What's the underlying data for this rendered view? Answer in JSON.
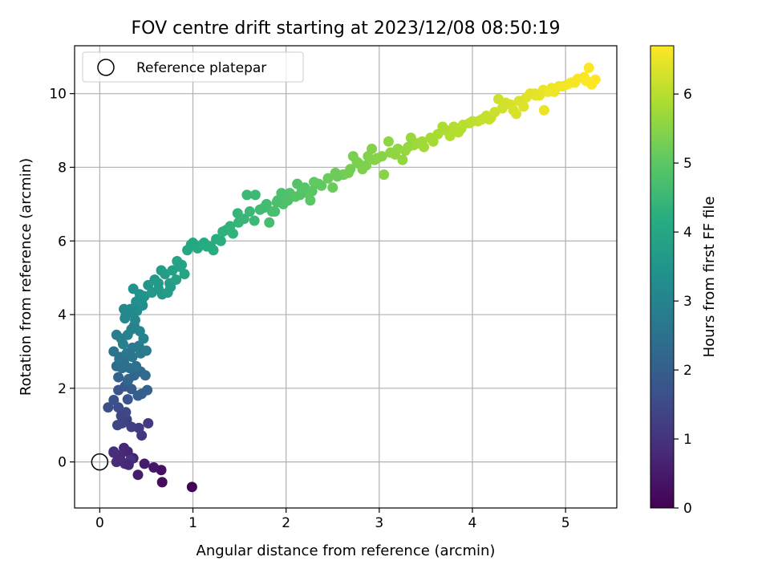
{
  "chart_data": {
    "type": "scatter",
    "title": "FOV centre drift starting at 2023/12/08 08:50:19",
    "xlabel": "Angular distance from reference (arcmin)",
    "ylabel": "Rotation from reference (arcmin)",
    "xlim": [
      -0.27,
      5.55
    ],
    "ylim": [
      -1.25,
      11.3
    ],
    "xticks": [
      0,
      1,
      2,
      3,
      4,
      5
    ],
    "yticks": [
      0,
      2,
      4,
      6,
      8,
      10
    ],
    "grid": true,
    "colormap": "viridis",
    "legend": {
      "position": "top-left",
      "entries": [
        "Reference platepar"
      ]
    },
    "reference_point": {
      "x": 0,
      "y": 0,
      "marker": "open-circle",
      "label": "Reference platepar"
    },
    "colorbar": {
      "label": "Hours from first FF file",
      "min": 0,
      "max": 6.7,
      "ticks": [
        0,
        1,
        2,
        3,
        4,
        5,
        6
      ]
    },
    "points": [
      [
        0.99,
        -0.68,
        0.05
      ],
      [
        0.67,
        -0.55,
        0.2
      ],
      [
        0.66,
        -0.22,
        0.3
      ],
      [
        0.58,
        -0.15,
        0.4
      ],
      [
        0.48,
        -0.05,
        0.5
      ],
      [
        0.41,
        -0.35,
        0.55
      ],
      [
        0.36,
        0.1,
        0.65
      ],
      [
        0.3,
        0.28,
        0.7
      ],
      [
        0.26,
        0.38,
        0.75
      ],
      [
        0.22,
        0.18,
        0.8
      ],
      [
        0.18,
        0.0,
        0.85
      ],
      [
        0.15,
        0.25,
        0.9
      ],
      [
        0.27,
        -0.05,
        0.95
      ],
      [
        0.33,
        0.06,
        1.0
      ],
      [
        0.45,
        0.72,
        1.1
      ],
      [
        0.42,
        0.92,
        1.2
      ],
      [
        0.34,
        0.95,
        1.25
      ],
      [
        0.29,
        1.15,
        1.3
      ],
      [
        0.24,
        1.05,
        1.35
      ],
      [
        0.19,
        1.0,
        1.4
      ],
      [
        0.28,
        1.35,
        1.5
      ],
      [
        0.2,
        1.48,
        1.55
      ],
      [
        0.09,
        1.48,
        1.6
      ],
      [
        0.15,
        1.68,
        1.7
      ],
      [
        0.3,
        1.7,
        1.75
      ],
      [
        0.2,
        1.95,
        1.8
      ],
      [
        0.27,
        2.05,
        1.85
      ],
      [
        0.34,
        1.98,
        1.9
      ],
      [
        0.41,
        1.8,
        1.95
      ],
      [
        0.45,
        1.85,
        2.0
      ],
      [
        0.51,
        1.95,
        2.05
      ],
      [
        0.2,
        2.3,
        2.1
      ],
      [
        0.3,
        2.2,
        2.15
      ],
      [
        0.37,
        2.35,
        2.2
      ],
      [
        0.44,
        2.45,
        2.25
      ],
      [
        0.49,
        2.35,
        2.3
      ],
      [
        0.18,
        2.6,
        2.35
      ],
      [
        0.26,
        2.7,
        2.4
      ],
      [
        0.32,
        2.55,
        2.45
      ],
      [
        0.39,
        2.6,
        2.5
      ],
      [
        0.15,
        3.0,
        2.55
      ],
      [
        0.22,
        2.85,
        2.6
      ],
      [
        0.29,
        2.95,
        2.65
      ],
      [
        0.35,
        3.1,
        2.7
      ],
      [
        0.42,
        3.15,
        2.75
      ],
      [
        0.5,
        3.02,
        2.8
      ],
      [
        0.18,
        3.45,
        2.85
      ],
      [
        0.25,
        3.2,
        2.9
      ],
      [
        0.3,
        3.45,
        2.95
      ],
      [
        0.37,
        3.7,
        3.0
      ],
      [
        0.43,
        3.55,
        3.05
      ],
      [
        0.38,
        3.85,
        3.1
      ],
      [
        0.27,
        3.9,
        3.12
      ],
      [
        0.26,
        4.15,
        3.15
      ],
      [
        0.32,
        4.05,
        3.2
      ],
      [
        0.4,
        4.1,
        3.25
      ],
      [
        0.46,
        4.25,
        3.3
      ],
      [
        0.39,
        4.35,
        3.35
      ],
      [
        0.43,
        4.55,
        3.4
      ],
      [
        0.36,
        4.7,
        3.45
      ],
      [
        0.48,
        4.5,
        3.5
      ],
      [
        0.52,
        4.8,
        3.55
      ],
      [
        0.59,
        4.95,
        3.6
      ],
      [
        0.63,
        4.7,
        3.62
      ],
      [
        0.67,
        4.55,
        3.65
      ],
      [
        0.7,
        5.1,
        3.7
      ],
      [
        0.75,
        4.85,
        3.75
      ],
      [
        0.78,
        5.2,
        3.8
      ],
      [
        0.82,
        4.95,
        3.85
      ],
      [
        0.88,
        5.35,
        3.9
      ],
      [
        0.91,
        5.1,
        3.95
      ],
      [
        0.98,
        5.9,
        4.0
      ],
      [
        1.05,
        5.8,
        4.05
      ],
      [
        1.12,
        5.95,
        4.1
      ],
      [
        1.19,
        5.85,
        4.15
      ],
      [
        1.25,
        6.05,
        4.2
      ],
      [
        1.3,
        6.0,
        4.25
      ],
      [
        1.36,
        6.3,
        4.3
      ],
      [
        1.43,
        6.2,
        4.35
      ],
      [
        1.49,
        6.5,
        4.4
      ],
      [
        1.55,
        6.6,
        4.45
      ],
      [
        1.61,
        6.8,
        4.5
      ],
      [
        1.66,
        6.55,
        4.55
      ],
      [
        1.72,
        6.85,
        4.6
      ],
      [
        1.79,
        7.0,
        4.65
      ],
      [
        1.85,
        6.8,
        4.7
      ],
      [
        1.91,
        7.1,
        4.75
      ],
      [
        1.97,
        7.0,
        4.8
      ],
      [
        2.04,
        7.3,
        4.85
      ],
      [
        2.1,
        7.2,
        4.9
      ],
      [
        2.17,
        7.4,
        4.95
      ],
      [
        2.23,
        7.3,
        5.0
      ],
      [
        2.3,
        7.6,
        5.05
      ],
      [
        2.38,
        7.5,
        5.1
      ],
      [
        2.45,
        7.7,
        5.15
      ],
      [
        2.53,
        7.85,
        5.2
      ],
      [
        2.61,
        7.8,
        5.25
      ],
      [
        2.69,
        7.95,
        5.3
      ],
      [
        2.78,
        8.1,
        5.35
      ],
      [
        2.86,
        8.05,
        5.4
      ],
      [
        2.95,
        8.2,
        5.45
      ],
      [
        3.03,
        8.3,
        5.5
      ],
      [
        3.12,
        8.4,
        5.55
      ],
      [
        3.2,
        8.5,
        5.6
      ],
      [
        3.28,
        8.45,
        5.65
      ],
      [
        3.37,
        8.6,
        5.7
      ],
      [
        3.46,
        8.7,
        5.75
      ],
      [
        3.55,
        8.8,
        5.8
      ],
      [
        3.63,
        8.9,
        5.85
      ],
      [
        3.72,
        9.0,
        5.9
      ],
      [
        3.8,
        9.1,
        5.95
      ],
      [
        3.88,
        9.05,
        6.0
      ],
      [
        3.97,
        9.2,
        6.05
      ],
      [
        4.06,
        9.25,
        6.1
      ],
      [
        4.15,
        9.4,
        6.15
      ],
      [
        4.24,
        9.5,
        6.2
      ],
      [
        4.32,
        9.6,
        6.25
      ],
      [
        4.41,
        9.7,
        6.3
      ],
      [
        4.5,
        9.8,
        6.35
      ],
      [
        4.58,
        9.9,
        6.4
      ],
      [
        4.67,
        10.0,
        6.45
      ],
      [
        4.76,
        10.1,
        6.5
      ],
      [
        4.85,
        10.15,
        6.55
      ],
      [
        4.93,
        10.2,
        6.58
      ],
      [
        5.02,
        10.25,
        6.6
      ],
      [
        5.1,
        10.3,
        6.62
      ],
      [
        5.2,
        10.45,
        6.65
      ],
      [
        5.25,
        10.7,
        6.68
      ],
      [
        5.28,
        10.25,
        6.7
      ],
      [
        5.32,
        10.38,
        6.7
      ],
      [
        0.31,
        -0.08,
        0.75
      ],
      [
        0.22,
        0.05,
        0.8
      ],
      [
        0.15,
        0.28,
        0.88
      ],
      [
        0.52,
        1.05,
        1.15
      ],
      [
        0.23,
        1.25,
        1.4
      ],
      [
        0.35,
        2.85,
        2.6
      ],
      [
        0.44,
        2.95,
        2.7
      ],
      [
        0.23,
        3.35,
        2.88
      ],
      [
        0.34,
        3.6,
        3.0
      ],
      [
        0.28,
        4.05,
        3.12
      ],
      [
        0.56,
        4.6,
        3.55
      ],
      [
        0.66,
        5.2,
        3.7
      ],
      [
        0.73,
        4.6,
        3.7
      ],
      [
        0.83,
        5.45,
        3.9
      ],
      [
        0.94,
        5.75,
        4.0
      ],
      [
        1.1,
        5.9,
        4.1
      ],
      [
        1.22,
        5.75,
        4.2
      ],
      [
        1.32,
        6.25,
        4.3
      ],
      [
        1.48,
        6.75,
        4.42
      ],
      [
        1.58,
        7.25,
        4.5
      ],
      [
        1.67,
        7.25,
        4.55
      ],
      [
        1.82,
        6.5,
        4.65
      ],
      [
        1.95,
        7.3,
        4.78
      ],
      [
        2.02,
        7.1,
        4.8
      ],
      [
        2.12,
        7.55,
        4.88
      ],
      [
        2.2,
        7.45,
        4.92
      ],
      [
        2.26,
        7.1,
        4.98
      ],
      [
        2.35,
        7.55,
        5.05
      ],
      [
        2.5,
        7.45,
        5.15
      ],
      [
        2.62,
        7.8,
        5.25
      ],
      [
        2.72,
        8.3,
        5.32
      ],
      [
        2.82,
        7.95,
        5.38
      ],
      [
        2.92,
        8.5,
        5.45
      ],
      [
        3.05,
        7.8,
        5.5
      ],
      [
        3.1,
        8.7,
        5.55
      ],
      [
        3.25,
        8.2,
        5.62
      ],
      [
        3.34,
        8.8,
        5.68
      ],
      [
        3.48,
        8.55,
        5.76
      ],
      [
        3.58,
        8.7,
        5.82
      ],
      [
        3.68,
        9.1,
        5.88
      ],
      [
        3.76,
        8.85,
        5.92
      ],
      [
        3.9,
        9.15,
        6.0
      ],
      [
        4.0,
        9.25,
        6.06
      ],
      [
        4.1,
        9.3,
        6.12
      ],
      [
        4.2,
        9.35,
        6.18
      ],
      [
        4.28,
        9.85,
        6.22
      ],
      [
        4.36,
        9.75,
        6.28
      ],
      [
        4.44,
        9.55,
        6.32
      ],
      [
        4.55,
        9.65,
        6.37
      ],
      [
        4.62,
        10.0,
        6.42
      ],
      [
        4.72,
        9.95,
        6.47
      ],
      [
        4.77,
        9.55,
        6.5
      ],
      [
        4.81,
        10.05,
        6.53
      ],
      [
        4.88,
        10.05,
        6.56
      ],
      [
        4.97,
        10.2,
        6.6
      ],
      [
        5.06,
        10.3,
        6.62
      ],
      [
        5.13,
        10.4,
        6.64
      ],
      [
        5.22,
        10.35,
        6.67
      ],
      [
        1.9,
        7.05,
        4.76
      ],
      [
        2.0,
        7.15,
        4.82
      ],
      [
        2.15,
        7.25,
        4.9
      ],
      [
        2.28,
        7.35,
        5.0
      ],
      [
        2.55,
        7.75,
        5.2
      ],
      [
        2.67,
        7.85,
        5.28
      ],
      [
        2.76,
        8.15,
        5.35
      ],
      [
        2.88,
        8.3,
        5.42
      ],
      [
        2.98,
        8.25,
        5.48
      ],
      [
        3.17,
        8.35,
        5.58
      ],
      [
        3.31,
        8.55,
        5.66
      ],
      [
        3.41,
        8.65,
        5.72
      ],
      [
        3.85,
        8.95,
        5.97
      ],
      [
        4.18,
        9.3,
        6.16
      ],
      [
        4.47,
        9.45,
        6.34
      ],
      [
        4.68,
        9.95,
        6.46
      ],
      [
        0.47,
        3.35,
        2.95
      ],
      [
        0.31,
        2.25,
        2.2
      ],
      [
        0.24,
        2.55,
        2.4
      ],
      [
        0.21,
        2.8,
        2.55
      ],
      [
        0.33,
        4.15,
        3.2
      ],
      [
        0.45,
        4.35,
        3.38
      ],
      [
        0.63,
        4.85,
        3.62
      ],
      [
        0.76,
        4.75,
        3.72
      ],
      [
        0.86,
        5.3,
        3.88
      ],
      [
        1.0,
        5.95,
        4.02
      ],
      [
        1.15,
        5.85,
        4.12
      ],
      [
        1.4,
        6.4,
        4.38
      ],
      [
        1.52,
        6.6,
        4.46
      ],
      [
        1.76,
        6.9,
        4.62
      ],
      [
        1.88,
        6.8,
        4.72
      ]
    ]
  }
}
